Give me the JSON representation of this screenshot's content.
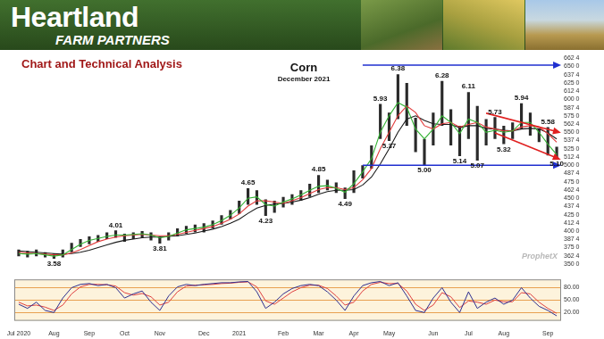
{
  "header": {
    "brand": "Heartland",
    "tagline": "FARM PARTNERS",
    "section": "Chart and Technical Analysis"
  },
  "chart_data": [
    {
      "type": "bar",
      "title": "Corn",
      "subtitle": "December 2021",
      "source": "ProphetX",
      "categories": [
        "Jul 2020",
        null,
        null,
        null,
        "Aug",
        null,
        null,
        null,
        "Sep",
        null,
        null,
        null,
        "Oct",
        null,
        null,
        null,
        "Nov",
        null,
        null,
        null,
        null,
        "Dec",
        null,
        null,
        null,
        "2021",
        null,
        null,
        null,
        null,
        "Feb",
        null,
        null,
        null,
        "Mar",
        null,
        null,
        null,
        "Apr",
        null,
        null,
        null,
        "May",
        null,
        null,
        null,
        null,
        "Jun",
        null,
        null,
        null,
        "Jul",
        null,
        null,
        null,
        "Aug",
        null,
        null,
        null,
        null,
        "Sep",
        null
      ],
      "series": [
        {
          "type": "bar",
          "color": "#2a2a2a",
          "low": [
            362,
            360,
            362,
            360,
            358,
            360,
            368,
            376,
            380,
            384,
            388,
            390,
            384,
            388,
            390,
            386,
            381,
            386,
            392,
            396,
            398,
            398,
            404,
            410,
            418,
            426,
            440,
            440,
            423,
            428,
            436,
            440,
            446,
            452,
            458,
            462,
            458,
            449,
            458,
            480,
            495,
            540,
            537,
            570,
            560,
            520,
            500,
            530,
            560,
            530,
            514,
            540,
            507,
            530,
            540,
            532,
            540,
            555,
            545,
            535,
            515,
            510
          ],
          "high": [
            372,
            370,
            372,
            368,
            366,
            372,
            382,
            388,
            392,
            394,
            398,
            401,
            396,
            398,
            400,
            398,
            392,
            398,
            404,
            408,
            410,
            412,
            416,
            424,
            432,
            446,
            465,
            462,
            448,
            446,
            452,
            456,
            462,
            472,
            485,
            478,
            474,
            466,
            492,
            500,
            530,
            593,
            580,
            638,
            625,
            572,
            540,
            580,
            628,
            585,
            560,
            611,
            590,
            570,
            573,
            560,
            565,
            594,
            580,
            556,
            558,
            528
          ]
        },
        {
          "type": "line",
          "color": "#34b334",
          "values": [
            366,
            365,
            366,
            364,
            362,
            364,
            372,
            380,
            386,
            389,
            392,
            394,
            394,
            395,
            396,
            394,
            390,
            392,
            397,
            402,
            404,
            406,
            410,
            416,
            424,
            435,
            450,
            452,
            440,
            438,
            444,
            449,
            455,
            462,
            468,
            469,
            465,
            459,
            472,
            490,
            510,
            550,
            575,
            595,
            588,
            555,
            540,
            555,
            575,
            565,
            548,
            570,
            565,
            550,
            553,
            550,
            552,
            565,
            565,
            550,
            532,
            516
          ]
        },
        {
          "type": "line",
          "color": "#e23b3b",
          "values": [
            368,
            367,
            366,
            365,
            364,
            364,
            367,
            372,
            378,
            384,
            388,
            391,
            393,
            394,
            395,
            394,
            393,
            393,
            395,
            398,
            401,
            404,
            407,
            412,
            418,
            426,
            438,
            446,
            446,
            444,
            442,
            446,
            451,
            457,
            463,
            466,
            466,
            463,
            466,
            478,
            495,
            525,
            550,
            575,
            590,
            580,
            560,
            555,
            563,
            565,
            558,
            562,
            565,
            558,
            555,
            552,
            552,
            558,
            560,
            558,
            548,
            535
          ]
        },
        {
          "type": "line",
          "color": "#1a1a1a",
          "values": [
            370,
            369,
            368,
            367,
            366,
            365,
            366,
            368,
            371,
            375,
            379,
            383,
            386,
            388,
            390,
            391,
            391,
            392,
            393,
            395,
            397,
            400,
            403,
            407,
            412,
            418,
            427,
            435,
            439,
            441,
            442,
            444,
            447,
            451,
            456,
            460,
            462,
            462,
            463,
            470,
            482,
            502,
            525,
            550,
            570,
            575,
            568,
            563,
            562,
            562,
            557,
            560,
            560,
            556,
            555,
            553,
            552,
            555,
            556,
            555,
            549,
            540
          ]
        }
      ],
      "trend_lines": [
        {
          "color": "#1f2fd0",
          "marker": "arrow",
          "x": [
            39,
            61
          ],
          "y": [
            652,
            652
          ]
        },
        {
          "color": "#1f2fd0",
          "marker": "arrow",
          "x": [
            39,
            61
          ],
          "y": [
            500,
            500
          ]
        },
        {
          "color": "#e02020",
          "marker": "arrow",
          "x": [
            53,
            61
          ],
          "y": [
            579,
            551
          ]
        },
        {
          "color": "#e02020",
          "marker": "arrow",
          "x": [
            54,
            61
          ],
          "y": [
            549,
            511
          ]
        }
      ],
      "annotations": [
        {
          "x": 4,
          "value": 358,
          "label": "3.58"
        },
        {
          "x": 11,
          "value": 401,
          "label": "4.01"
        },
        {
          "x": 16,
          "value": 381,
          "label": "3.81"
        },
        {
          "x": 26,
          "value": 465,
          "label": "4.65"
        },
        {
          "x": 28,
          "value": 423,
          "label": "4.23"
        },
        {
          "x": 34,
          "value": 485,
          "label": "4.85"
        },
        {
          "x": 37,
          "value": 449,
          "label": "4.49"
        },
        {
          "x": 41,
          "value": 593,
          "label": "5.93"
        },
        {
          "x": 42,
          "value": 537,
          "label": "5.37"
        },
        {
          "x": 43,
          "value": 638,
          "label": "6.38"
        },
        {
          "x": 46,
          "value": 500,
          "label": "5.00"
        },
        {
          "x": 48,
          "value": 628,
          "label": "6.28"
        },
        {
          "x": 50,
          "value": 514,
          "label": "5.14"
        },
        {
          "x": 51,
          "value": 611,
          "label": "6.11"
        },
        {
          "x": 52,
          "value": 507,
          "label": "5.07"
        },
        {
          "x": 54,
          "value": 573,
          "label": "5.73"
        },
        {
          "x": 55,
          "value": 532,
          "label": "5.32"
        },
        {
          "x": 57,
          "value": 594,
          "label": "5.94"
        },
        {
          "x": 60,
          "value": 558,
          "label": "5.58"
        },
        {
          "x": 61,
          "value": 510,
          "label": "5.10"
        }
      ],
      "ylim": [
        350,
        662.5
      ],
      "yticks": [
        {
          "value": 350,
          "label": "350 0"
        },
        {
          "value": 362.5,
          "label": "362 4"
        },
        {
          "value": 375,
          "label": "375 0"
        },
        {
          "value": 387.5,
          "label": "387 4"
        },
        {
          "value": 400,
          "label": "400 0"
        },
        {
          "value": 412.5,
          "label": "412 4"
        },
        {
          "value": 425,
          "label": "425 0"
        },
        {
          "value": 437.5,
          "label": "437 4"
        },
        {
          "value": 450,
          "label": "450 0"
        },
        {
          "value": 462.5,
          "label": "462 4"
        },
        {
          "value": 475,
          "label": "475 0"
        },
        {
          "value": 487.5,
          "label": "487 4"
        },
        {
          "value": 500,
          "label": "500 0"
        },
        {
          "value": 512.5,
          "label": "512 4"
        },
        {
          "value": 525,
          "label": "525 0"
        },
        {
          "value": 537.5,
          "label": "537 4"
        },
        {
          "value": 550,
          "label": "550 0"
        },
        {
          "value": 562.5,
          "label": "562 4"
        },
        {
          "value": 575,
          "label": "575 0"
        },
        {
          "value": 587.5,
          "label": "587 4"
        },
        {
          "value": 600,
          "label": "600 0"
        },
        {
          "value": 612.5,
          "label": "612 4"
        },
        {
          "value": 625,
          "label": "625 0"
        },
        {
          "value": 637.5,
          "label": "637 4"
        },
        {
          "value": 650,
          "label": "650 0"
        },
        {
          "value": 662.5,
          "label": "662 4"
        }
      ],
      "grid": false,
      "tick_labels": "y"
    },
    {
      "type": "line",
      "categories": [
        "Jul 2020",
        null,
        null,
        null,
        "Aug",
        null,
        null,
        null,
        "Sep",
        null,
        null,
        null,
        "Oct",
        null,
        null,
        null,
        "Nov",
        null,
        null,
        null,
        null,
        "Dec",
        null,
        null,
        null,
        "2021",
        null,
        null,
        null,
        null,
        "Feb",
        null,
        null,
        null,
        "Mar",
        null,
        null,
        null,
        "Apr",
        null,
        null,
        null,
        "May",
        null,
        null,
        null,
        null,
        "Jun",
        null,
        null,
        null,
        "Jul",
        null,
        null,
        null,
        "Aug",
        null,
        null,
        null,
        null,
        "Sep",
        null
      ],
      "series": [
        {
          "color": "#2d2d8f",
          "values": [
            40,
            30,
            45,
            25,
            20,
            55,
            80,
            88,
            90,
            85,
            88,
            80,
            55,
            65,
            72,
            45,
            25,
            60,
            82,
            88,
            85,
            88,
            90,
            92,
            92,
            94,
            95,
            70,
            30,
            45,
            65,
            78,
            85,
            88,
            85,
            70,
            50,
            25,
            60,
            85,
            92,
            95,
            85,
            92,
            60,
            25,
            20,
            55,
            80,
            45,
            20,
            70,
            30,
            45,
            55,
            40,
            50,
            80,
            55,
            35,
            25,
            12
          ]
        },
        {
          "color": "#e04040",
          "values": [
            45,
            36,
            38,
            33,
            25,
            38,
            65,
            82,
            88,
            88,
            87,
            84,
            68,
            62,
            66,
            58,
            38,
            45,
            70,
            84,
            86,
            87,
            88,
            90,
            91,
            93,
            94,
            82,
            48,
            40,
            55,
            70,
            80,
            86,
            86,
            78,
            60,
            38,
            45,
            72,
            88,
            93,
            90,
            90,
            72,
            40,
            25,
            38,
            68,
            58,
            32,
            48,
            45,
            40,
            50,
            46,
            46,
            68,
            65,
            45,
            30,
            18
          ]
        }
      ],
      "ylim": [
        0,
        100
      ],
      "yticks": [
        {
          "value": 20,
          "label": "20.00"
        },
        {
          "value": 50,
          "label": "50.00"
        },
        {
          "value": 80,
          "label": "80.00"
        }
      ],
      "grid": true
    }
  ]
}
